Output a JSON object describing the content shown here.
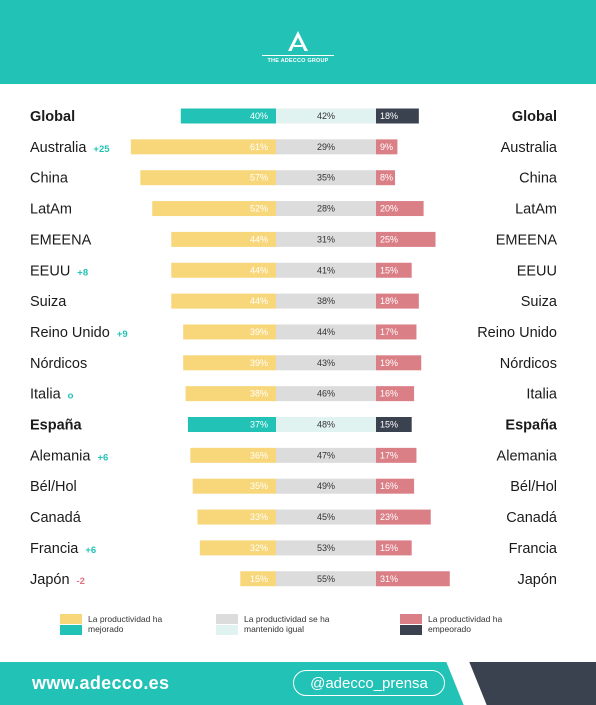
{
  "brand": {
    "logo_text": "THE ADECCO GROUP"
  },
  "chart_data": {
    "type": "bar",
    "subtype": "diverging-stacked",
    "categories": [
      "Global",
      "Australia",
      "China",
      "LatAm",
      "EMEENA",
      "EEUU",
      "Suiza",
      "Reino Unido",
      "Nórdicos",
      "Italia",
      "España",
      "Alemania",
      "Bél/Hol",
      "Canadá",
      "Francia",
      "Japón"
    ],
    "highlight_rows": [
      "Global",
      "España"
    ],
    "changes": [
      "",
      "+25",
      "",
      "",
      "",
      "+8",
      "",
      "+9",
      "",
      "o",
      "",
      "+6",
      "",
      "",
      "+6",
      "-2"
    ],
    "series": [
      {
        "name": "La productividad ha mejorado",
        "values": [
          40,
          61,
          57,
          52,
          44,
          44,
          44,
          39,
          39,
          38,
          37,
          36,
          35,
          33,
          32,
          15
        ]
      },
      {
        "name": "La productividad se ha mantenido igual",
        "values": [
          42,
          29,
          35,
          28,
          31,
          41,
          38,
          44,
          43,
          46,
          48,
          47,
          49,
          45,
          53,
          55
        ]
      },
      {
        "name": "La productividad ha empeorado",
        "values": [
          18,
          9,
          8,
          20,
          25,
          15,
          18,
          17,
          19,
          16,
          15,
          17,
          16,
          23,
          15,
          31
        ]
      }
    ],
    "value_suffix": "%",
    "colors": {
      "improved": "#f7d77a",
      "improved_highlight": "#22c2b6",
      "same": "#dcdcdc",
      "same_highlight": "#e1f3f1",
      "worse": "#db7f87",
      "worse_highlight": "#3a4250",
      "change_positive": "#22c2b6",
      "change_negative": "#e5727f"
    }
  },
  "legend": [
    {
      "label": "La productividad ha mejorado",
      "colors": [
        "#f7d77a",
        "#22c2b6"
      ]
    },
    {
      "label": "La productividad se ha mantenido igual",
      "colors": [
        "#dcdcdc",
        "#e1f3f1"
      ]
    },
    {
      "label": "La productividad ha empeorado",
      "colors": [
        "#db7f87",
        "#3a4250"
      ]
    }
  ],
  "footer": {
    "website": "www.adecco.es",
    "handle": "@adecco_prensa"
  }
}
